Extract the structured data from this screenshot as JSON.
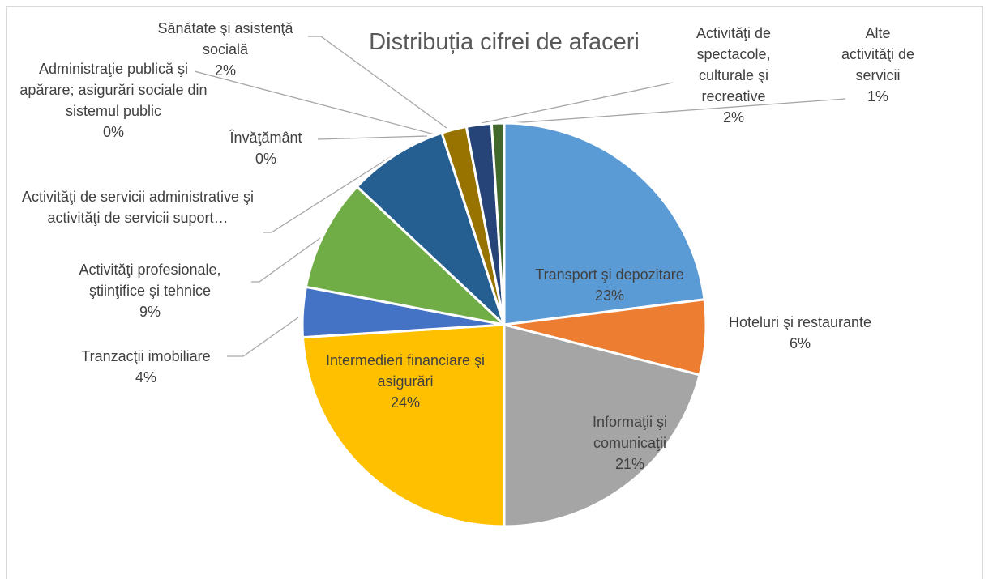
{
  "chart_data": {
    "type": "pie",
    "title": "Distribuția cifrei de afaceri",
    "categories": [
      "Transport şi depozitare",
      "Hoteluri şi restaurante",
      "Informaţii  şi comunicaţii",
      "Intermedieri financiare şi asigurări",
      "Tranzacţii imobiliare",
      "Activităţi profesionale, ştiinţifice şi tehnice",
      "Activităţi de servicii administrative şi activităţi de servicii suport…",
      "Învăţământ",
      "Administraţie publică şi apărare; asigurări sociale din sistemul public",
      "Sănătate şi asistenţă socială",
      "Activităţi de spectacole, culturale şi recreative",
      "Alte activităţi de servicii"
    ],
    "values": [
      23,
      6,
      21,
      24,
      4,
      9,
      8,
      0,
      0,
      2,
      2,
      1
    ],
    "value_labels": [
      "23%",
      "6%",
      "21%",
      "24%",
      "4%",
      "9%",
      null,
      "0%",
      "0%",
      "2%",
      "2%",
      "1%"
    ],
    "colors": [
      "#5b9bd5",
      "#ed7d31",
      "#a5a5a5",
      "#ffc000",
      "#4472c4",
      "#70ad47",
      "#255e91",
      "#9e480e",
      "#636363",
      "#997300",
      "#264478",
      "#43682b"
    ]
  }
}
